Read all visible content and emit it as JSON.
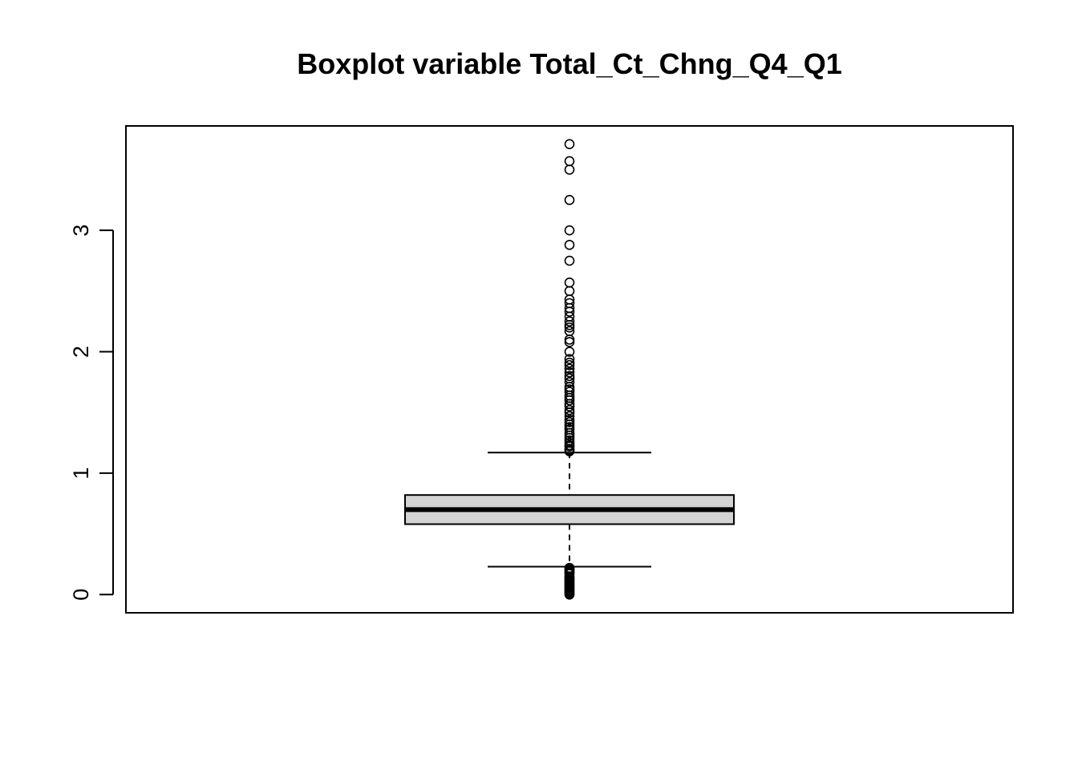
{
  "chart_data": {
    "type": "boxplot",
    "title": "Boxplot variable Total_Ct_Chng_Q4_Q1",
    "xlabel": "",
    "ylabel": "",
    "ylim": [
      -0.15,
      3.86
    ],
    "yticks": [
      0,
      1,
      2,
      3
    ],
    "grid": false,
    "box": {
      "lower_whisker": 0.23,
      "q1": 0.58,
      "median": 0.7,
      "q3": 0.82,
      "upper_whisker": 1.17
    },
    "outliers": [
      3.71,
      3.57,
      3.5,
      3.25,
      3.0,
      2.88,
      2.75,
      2.57,
      2.5,
      2.43,
      2.4,
      2.36,
      2.33,
      2.29,
      2.25,
      2.22,
      2.2,
      2.17,
      2.1,
      2.08,
      2.0,
      1.94,
      1.91,
      1.89,
      1.86,
      1.83,
      1.8,
      1.78,
      1.75,
      1.71,
      1.69,
      1.67,
      1.64,
      1.62,
      1.6,
      1.57,
      1.55,
      1.52,
      1.5,
      1.47,
      1.44,
      1.42,
      1.4,
      1.38,
      1.36,
      1.33,
      1.31,
      1.29,
      1.27,
      1.25,
      1.23,
      1.22,
      1.2,
      1.19,
      1.18,
      0.22,
      0.21,
      0.2,
      0.19,
      0.18,
      0.17,
      0.15,
      0.14,
      0.13,
      0.12,
      0.11,
      0.1,
      0.09,
      0.08,
      0.07,
      0.06,
      0.05,
      0.04,
      0.03,
      0.02,
      0.01,
      0.0
    ],
    "colors": {
      "box_fill": "#d3d3d3",
      "stroke": "#000000"
    }
  }
}
